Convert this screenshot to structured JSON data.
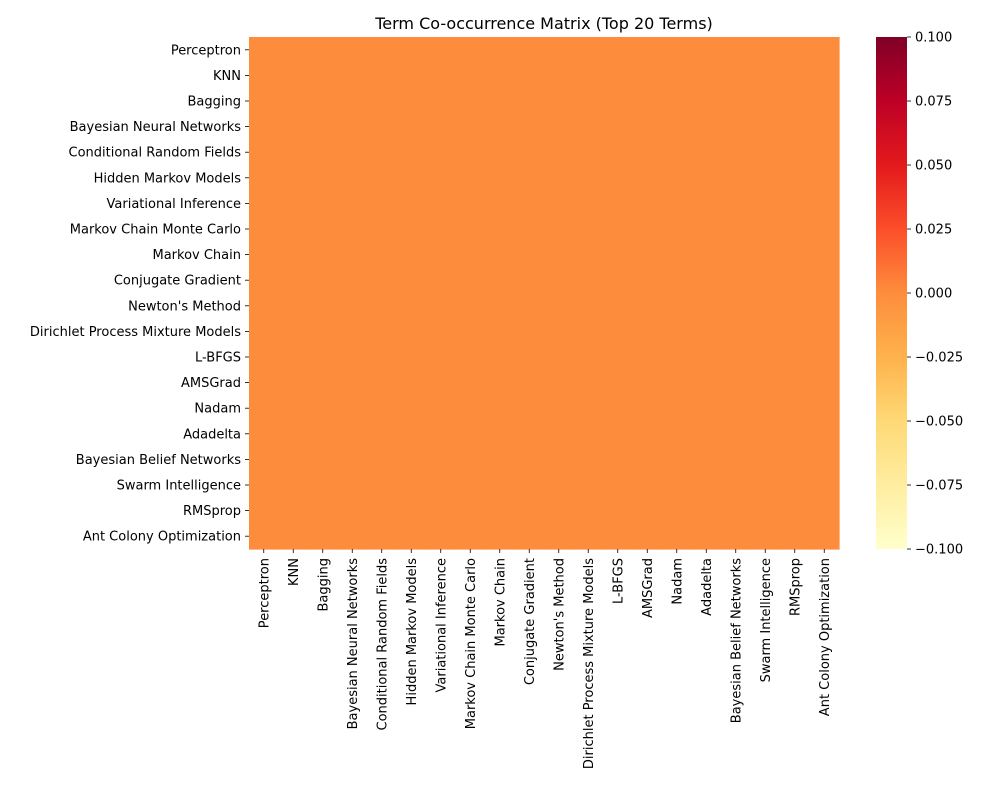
{
  "chart_data": {
    "type": "heatmap",
    "title": "Term Co-occurrence Matrix (Top 20 Terms)",
    "xlabel": "",
    "ylabel": "",
    "rows": [
      "Perceptron",
      "KNN",
      "Bagging",
      "Bayesian Neural Networks",
      "Conditional Random Fields",
      "Hidden Markov Models",
      "Variational Inference",
      "Markov Chain Monte Carlo",
      "Markov Chain",
      "Conjugate Gradient",
      "Newton's Method",
      "Dirichlet Process Mixture Models",
      "L-BFGS",
      "AMSGrad",
      "Nadam",
      "Adadelta",
      "Bayesian Belief Networks",
      "Swarm Intelligence",
      "RMSprop",
      "Ant Colony Optimization"
    ],
    "columns": [
      "Perceptron",
      "KNN",
      "Bagging",
      "Bayesian Neural Networks",
      "Conditional Random Fields",
      "Hidden Markov Models",
      "Variational Inference",
      "Markov Chain Monte Carlo",
      "Markov Chain",
      "Conjugate Gradient",
      "Newton's Method",
      "Dirichlet Process Mixture Models",
      "L-BFGS",
      "AMSGrad",
      "Nadam",
      "Adadelta",
      "Bayesian Belief Networks",
      "Swarm Intelligence",
      "RMSprop",
      "Ant Colony Optimization"
    ],
    "fill_value": 0,
    "values": [],
    "colormap": "YlOrRd",
    "colorbar": {
      "range": [
        -0.1,
        0.1
      ],
      "ticks": [
        -0.1,
        -0.075,
        -0.05,
        -0.025,
        0.0,
        0.025,
        0.05,
        0.075,
        0.1
      ],
      "tick_labels": [
        "−0.100",
        "−0.075",
        "−0.050",
        "−0.025",
        "0.000",
        "0.025",
        "0.050",
        "0.075",
        "0.100"
      ]
    },
    "cell_color": "#fd8d3c",
    "grid": false
  }
}
